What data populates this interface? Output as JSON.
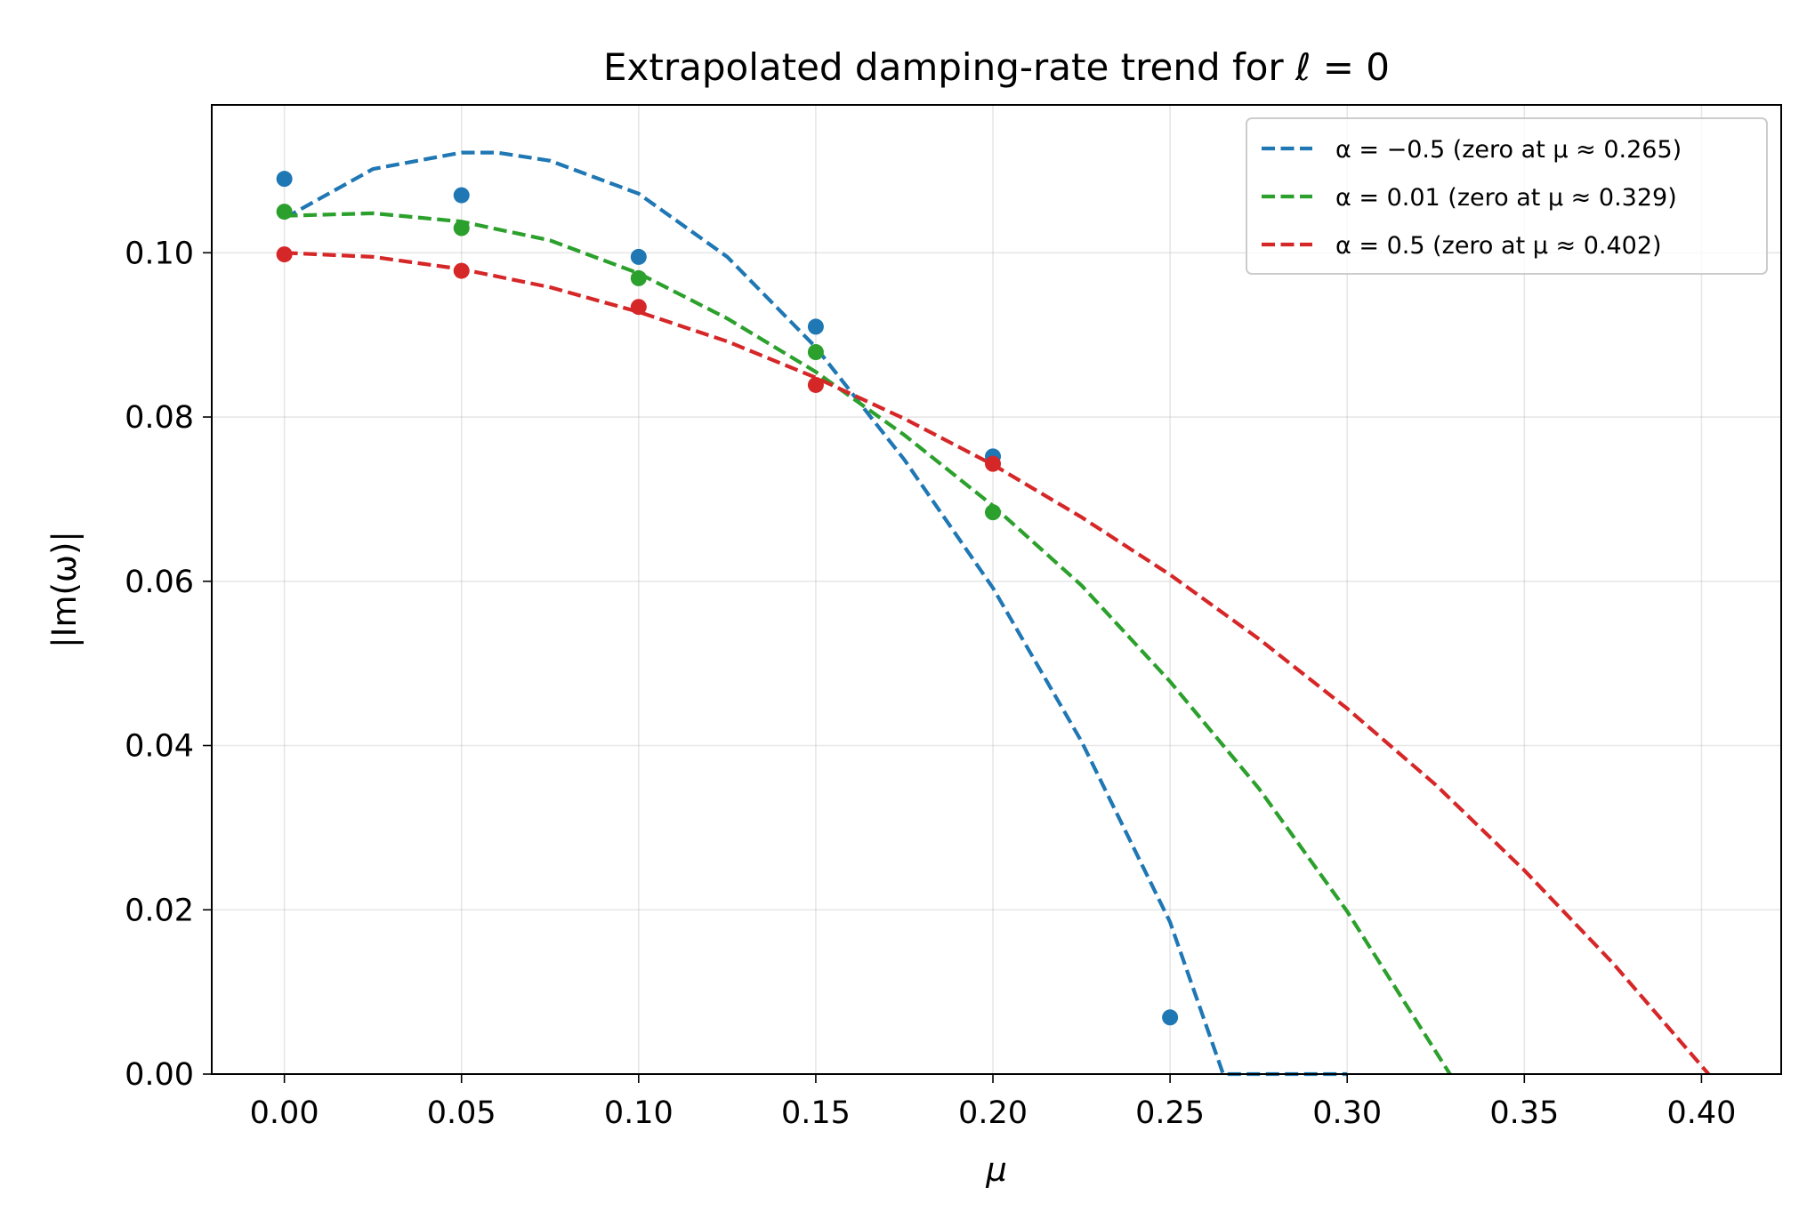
{
  "chart_data": {
    "type": "line",
    "title": "Extrapolated damping-rate trend for ℓ = 0",
    "xlabel": "μ",
    "ylabel": "|Im(ω)|",
    "xlim": [
      -0.0205,
      0.4225
    ],
    "ylim": [
      0.0,
      0.118
    ],
    "x_ticks": [
      0.0,
      0.05,
      0.1,
      0.15,
      0.2,
      0.25,
      0.3,
      0.35,
      0.4
    ],
    "x_tick_labels": [
      "0.00",
      "0.05",
      "0.10",
      "0.15",
      "0.20",
      "0.25",
      "0.30",
      "0.35",
      "0.40"
    ],
    "y_ticks": [
      0.0,
      0.02,
      0.04,
      0.06,
      0.08,
      0.1
    ],
    "y_tick_labels": [
      "0.00",
      "0.02",
      "0.04",
      "0.06",
      "0.08",
      "0.10"
    ],
    "grid": true,
    "legend_position": "top-right",
    "series": [
      {
        "name": "α = −0.5 (zero at μ ≈ 0.265)",
        "color": "#1f77b4",
        "points_x": [
          0.0,
          0.05,
          0.1,
          0.15,
          0.2,
          0.25
        ],
        "points_y": [
          0.109,
          0.107,
          0.0995,
          0.091,
          0.0752,
          0.0069
        ],
        "fit_x": [
          0.0,
          0.025,
          0.05,
          0.06,
          0.075,
          0.1,
          0.125,
          0.15,
          0.175,
          0.2,
          0.225,
          0.25,
          0.265,
          0.3
        ],
        "fit_y": [
          0.1042,
          0.1102,
          0.1122,
          0.1122,
          0.1112,
          0.1072,
          0.0995,
          0.0885,
          0.0748,
          0.0592,
          0.0405,
          0.0185,
          0.0,
          0.0
        ]
      },
      {
        "name": "α = 0.01 (zero at μ ≈ 0.329)",
        "color": "#2ca02c",
        "points_x": [
          0.0,
          0.05,
          0.1,
          0.15,
          0.2
        ],
        "points_y": [
          0.105,
          0.103,
          0.0969,
          0.0879,
          0.0684
        ],
        "fit_x": [
          0.0,
          0.025,
          0.05,
          0.075,
          0.1,
          0.125,
          0.15,
          0.175,
          0.2,
          0.225,
          0.25,
          0.275,
          0.3,
          0.329
        ],
        "fit_y": [
          0.1045,
          0.1048,
          0.1038,
          0.1015,
          0.0975,
          0.092,
          0.0855,
          0.0778,
          0.0692,
          0.0595,
          0.0478,
          0.0348,
          0.0198,
          0.0
        ]
      },
      {
        "name": "α = 0.5 (zero at μ ≈ 0.402)",
        "color": "#d62728",
        "points_x": [
          0.0,
          0.05,
          0.1,
          0.15,
          0.2
        ],
        "points_y": [
          0.0998,
          0.0978,
          0.0934,
          0.0839,
          0.0743
        ],
        "fit_x": [
          0.0,
          0.025,
          0.05,
          0.075,
          0.1,
          0.125,
          0.15,
          0.175,
          0.2,
          0.225,
          0.25,
          0.275,
          0.3,
          0.325,
          0.35,
          0.375,
          0.402
        ],
        "fit_y": [
          0.1,
          0.0995,
          0.098,
          0.0958,
          0.0928,
          0.0892,
          0.0848,
          0.0798,
          0.0742,
          0.0678,
          0.0608,
          0.053,
          0.0445,
          0.0352,
          0.0248,
          0.0135,
          0.0
        ]
      }
    ]
  }
}
